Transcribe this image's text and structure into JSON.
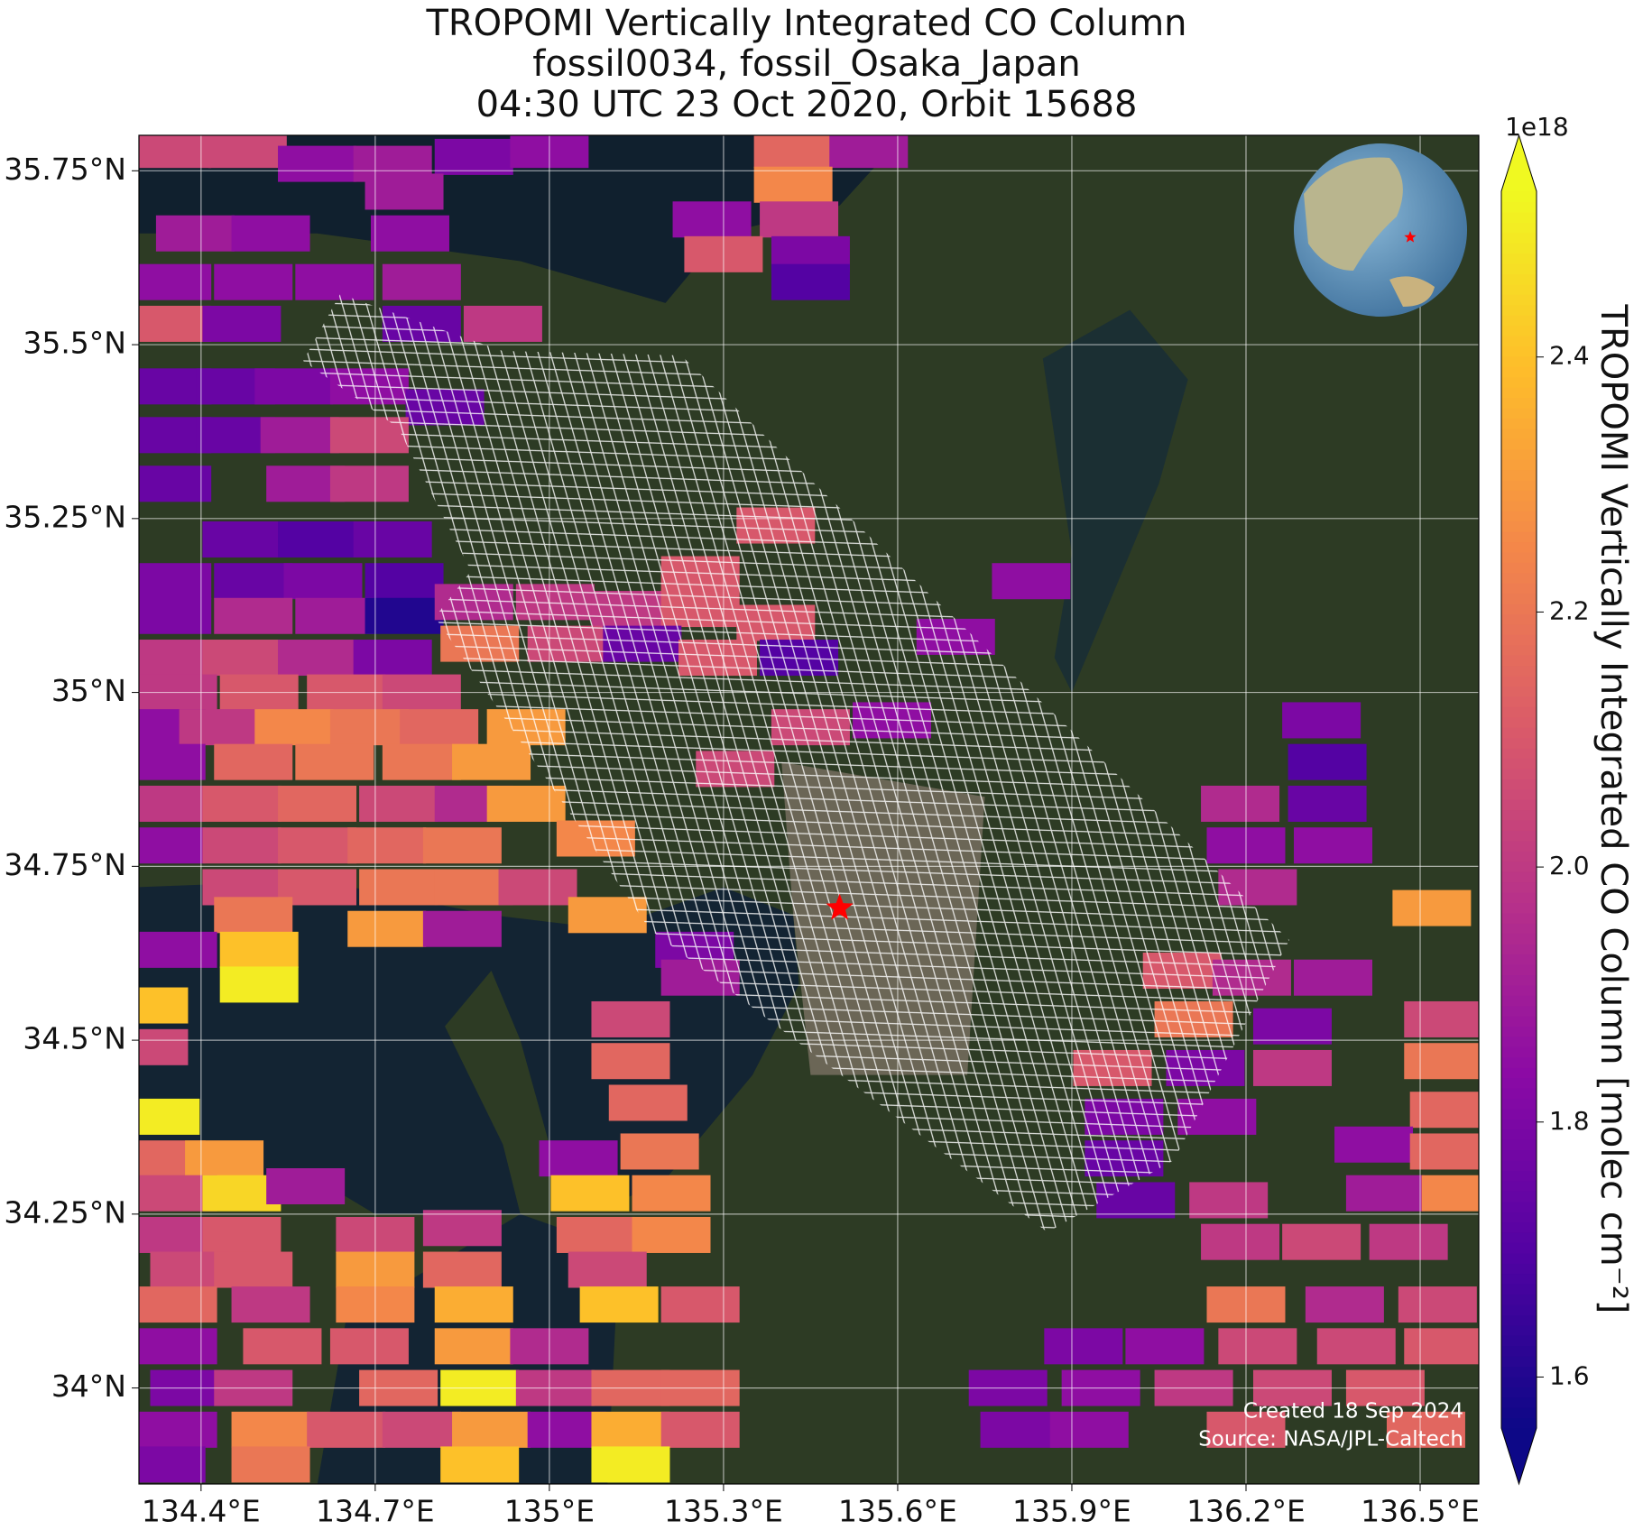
{
  "chart_data": {
    "type": "map",
    "title": [
      "TROPOMI Vertically Integrated CO Column",
      "fossil0034, fossil_Osaka_Japan",
      "04:30 UTC 23 Oct 2020, Orbit 15688"
    ],
    "xlim": [
      134.293,
      136.601
    ],
    "ylim": [
      33.862,
      35.801
    ],
    "xticks": [
      {
        "value": 134.4,
        "label": "134.4°E"
      },
      {
        "value": 134.7,
        "label": "134.7°E"
      },
      {
        "value": 135,
        "label": "135°E"
      },
      {
        "value": 135.3,
        "label": "135.3°E"
      },
      {
        "value": 135.6,
        "label": "135.6°E"
      },
      {
        "value": 135.9,
        "label": "135.9°E"
      },
      {
        "value": 136.2,
        "label": "136.2°E"
      },
      {
        "value": 136.5,
        "label": "136.5°E"
      }
    ],
    "yticks": [
      {
        "value": 34,
        "label": "34°N"
      },
      {
        "value": 34.25,
        "label": "34.25°N"
      },
      {
        "value": 34.5,
        "label": "34.5°N"
      },
      {
        "value": 34.75,
        "label": "34.75°N"
      },
      {
        "value": 35,
        "label": "35°N"
      },
      {
        "value": 35.25,
        "label": "35.25°N"
      },
      {
        "value": 35.5,
        "label": "35.5°N"
      },
      {
        "value": 35.75,
        "label": "35.75°N"
      }
    ],
    "grid": true,
    "colormap": "plasma",
    "colorbar": {
      "label": "TROPOMI Vertically Integrated CO Column [molec cm⁻²]",
      "offset_label": "1e18",
      "lim": [
        1.56,
        2.53
      ],
      "ticks": [
        1.6,
        1.8,
        {
          "value": 2,
          "label": "2.0"
        },
        2.2,
        2.4
      ]
    },
    "marker": {
      "lon": 135.5,
      "lat": 34.69,
      "color": "#ff0000"
    },
    "annotations": [
      "Created 18 Sep 2024",
      "Source: NASA/JPL-Caltech"
    ],
    "pixels": [
      [
        134.35,
        35.78,
        2.05
      ],
      [
        134.48,
        35.78,
        2.05
      ],
      [
        134.6,
        35.76,
        1.85
      ],
      [
        134.73,
        35.76,
        1.9
      ],
      [
        134.87,
        35.77,
        1.8
      ],
      [
        135.0,
        35.78,
        1.85
      ],
      [
        135.42,
        35.78,
        2.15
      ],
      [
        135.55,
        35.78,
        1.9
      ],
      [
        134.75,
        35.72,
        1.9
      ],
      [
        135.42,
        35.73,
        2.25
      ],
      [
        134.39,
        35.66,
        1.9
      ],
      [
        134.52,
        35.66,
        1.85
      ],
      [
        134.76,
        35.66,
        1.85
      ],
      [
        135.28,
        35.68,
        1.85
      ],
      [
        135.43,
        35.68,
        2.0
      ],
      [
        135.3,
        35.63,
        2.1
      ],
      [
        135.45,
        35.63,
        1.8
      ],
      [
        135.45,
        35.59,
        1.7
      ],
      [
        134.35,
        35.59,
        1.85
      ],
      [
        134.49,
        35.59,
        1.85
      ],
      [
        134.63,
        35.59,
        1.85
      ],
      [
        134.78,
        35.59,
        1.9
      ],
      [
        134.92,
        35.53,
        2.0
      ],
      [
        134.35,
        35.53,
        2.1
      ],
      [
        134.47,
        35.53,
        1.8
      ],
      [
        134.78,
        35.53,
        1.75
      ],
      [
        134.35,
        35.44,
        1.75
      ],
      [
        134.46,
        35.44,
        1.75
      ],
      [
        134.56,
        35.44,
        1.8
      ],
      [
        134.69,
        35.44,
        1.85
      ],
      [
        134.82,
        35.41,
        1.75
      ],
      [
        134.35,
        35.37,
        1.75
      ],
      [
        134.46,
        35.37,
        1.75
      ],
      [
        134.57,
        35.37,
        1.9
      ],
      [
        134.69,
        35.37,
        2.05
      ],
      [
        134.35,
        35.3,
        1.75
      ],
      [
        134.58,
        35.3,
        1.9
      ],
      [
        134.69,
        35.3,
        2.0
      ],
      [
        134.47,
        35.22,
        1.75
      ],
      [
        134.6,
        35.22,
        1.7
      ],
      [
        134.73,
        35.22,
        1.75
      ],
      [
        135.39,
        35.24,
        2.1
      ],
      [
        134.35,
        35.16,
        1.8
      ],
      [
        134.49,
        35.16,
        1.75
      ],
      [
        134.61,
        35.16,
        1.8
      ],
      [
        134.75,
        35.16,
        1.7
      ],
      [
        135.83,
        35.16,
        1.85
      ],
      [
        134.35,
        35.11,
        1.8
      ],
      [
        134.49,
        35.11,
        1.95
      ],
      [
        134.63,
        35.11,
        1.9
      ],
      [
        134.75,
        35.11,
        1.6
      ],
      [
        134.87,
        35.13,
        1.95
      ],
      [
        135.01,
        35.13,
        2.0
      ],
      [
        135.14,
        35.12,
        2.0
      ],
      [
        135.26,
        35.17,
        2.1
      ],
      [
        135.26,
        35.12,
        2.1
      ],
      [
        135.39,
        35.1,
        2.1
      ],
      [
        134.34,
        35.05,
        2.0
      ],
      [
        134.47,
        35.05,
        2.05
      ],
      [
        134.6,
        35.05,
        1.95
      ],
      [
        134.73,
        35.05,
        1.8
      ],
      [
        134.88,
        35.07,
        2.2
      ],
      [
        135.03,
        35.07,
        2.05
      ],
      [
        135.16,
        35.07,
        1.75
      ],
      [
        135.29,
        35.05,
        2.1
      ],
      [
        135.43,
        35.05,
        1.7
      ],
      [
        135.7,
        35.08,
        1.85
      ],
      [
        134.36,
        35.0,
        2.0
      ],
      [
        134.5,
        35.0,
        2.1
      ],
      [
        134.65,
        35.0,
        2.1
      ],
      [
        134.78,
        35.0,
        2.05
      ],
      [
        134.34,
        34.95,
        1.85
      ],
      [
        134.43,
        34.95,
        2.0
      ],
      [
        134.56,
        34.95,
        2.25
      ],
      [
        134.69,
        34.95,
        2.2
      ],
      [
        134.81,
        34.95,
        2.15
      ],
      [
        134.96,
        34.95,
        2.3
      ],
      [
        135.45,
        34.95,
        2.05
      ],
      [
        135.59,
        34.96,
        1.85
      ],
      [
        136.33,
        34.96,
        1.8
      ],
      [
        134.34,
        34.9,
        1.85
      ],
      [
        134.49,
        34.9,
        2.15
      ],
      [
        134.63,
        34.9,
        2.2
      ],
      [
        134.78,
        34.9,
        2.2
      ],
      [
        134.9,
        34.9,
        2.3
      ],
      [
        135.32,
        34.89,
        2.05
      ],
      [
        136.34,
        34.9,
        1.7
      ],
      [
        134.34,
        34.84,
        2.0
      ],
      [
        134.47,
        34.84,
        2.1
      ],
      [
        134.6,
        34.84,
        2.15
      ],
      [
        134.74,
        34.84,
        2.05
      ],
      [
        134.87,
        34.84,
        1.95
      ],
      [
        134.96,
        34.84,
        2.3
      ],
      [
        136.19,
        34.84,
        1.95
      ],
      [
        136.34,
        34.84,
        1.75
      ],
      [
        134.34,
        34.78,
        1.85
      ],
      [
        134.47,
        34.78,
        2.05
      ],
      [
        134.6,
        34.78,
        2.1
      ],
      [
        134.72,
        34.78,
        2.15
      ],
      [
        134.85,
        34.78,
        2.2
      ],
      [
        135.08,
        34.79,
        2.25
      ],
      [
        136.2,
        34.78,
        1.85
      ],
      [
        136.35,
        34.78,
        1.85
      ],
      [
        134.47,
        34.72,
        2.05
      ],
      [
        134.6,
        34.72,
        2.1
      ],
      [
        134.74,
        34.72,
        2.2
      ],
      [
        134.87,
        34.72,
        2.2
      ],
      [
        134.98,
        34.72,
        2.05
      ],
      [
        136.22,
        34.72,
        1.95
      ],
      [
        134.49,
        34.68,
        2.2
      ],
      [
        134.72,
        34.66,
        2.3
      ],
      [
        134.85,
        34.66,
        1.9
      ],
      [
        135.1,
        34.68,
        2.3
      ],
      [
        136.52,
        34.69,
        2.3
      ],
      [
        134.36,
        34.63,
        1.85
      ],
      [
        134.5,
        34.63,
        2.4
      ],
      [
        135.25,
        34.63,
        1.8
      ],
      [
        134.5,
        34.58,
        2.5
      ],
      [
        135.26,
        34.59,
        1.9
      ],
      [
        136.09,
        34.6,
        2.1
      ],
      [
        136.21,
        34.59,
        1.95
      ],
      [
        136.35,
        34.59,
        1.9
      ],
      [
        135.14,
        34.53,
        2.05
      ],
      [
        136.11,
        34.53,
        2.2
      ],
      [
        136.28,
        34.52,
        1.8
      ],
      [
        136.54,
        34.53,
        2.05
      ],
      [
        134.31,
        34.55,
        2.4
      ],
      [
        135.14,
        34.47,
        2.15
      ],
      [
        135.97,
        34.46,
        2.1
      ],
      [
        136.13,
        34.46,
        1.8
      ],
      [
        136.28,
        34.46,
        2.0
      ],
      [
        136.54,
        34.47,
        2.2
      ],
      [
        134.31,
        34.49,
        2.05
      ],
      [
        134.33,
        34.39,
        2.5
      ],
      [
        135.17,
        34.41,
        2.15
      ],
      [
        135.99,
        34.39,
        1.8
      ],
      [
        136.15,
        34.39,
        1.85
      ],
      [
        136.55,
        34.4,
        2.15
      ],
      [
        134.34,
        34.33,
        2.15
      ],
      [
        134.44,
        34.33,
        2.3
      ],
      [
        135.05,
        34.33,
        1.85
      ],
      [
        135.19,
        34.34,
        2.2
      ],
      [
        135.99,
        34.33,
        1.75
      ],
      [
        136.42,
        34.35,
        1.85
      ],
      [
        136.55,
        34.34,
        2.15
      ],
      [
        134.36,
        34.28,
        2.05
      ],
      [
        134.47,
        34.28,
        2.45
      ],
      [
        134.58,
        34.29,
        1.9
      ],
      [
        135.07,
        34.28,
        2.4
      ],
      [
        135.21,
        34.28,
        2.25
      ],
      [
        136.01,
        34.27,
        1.75
      ],
      [
        136.17,
        34.27,
        2.0
      ],
      [
        136.44,
        34.28,
        1.9
      ],
      [
        136.57,
        34.28,
        2.25
      ],
      [
        134.36,
        34.22,
        2.0
      ],
      [
        134.47,
        34.22,
        2.1
      ],
      [
        134.7,
        34.22,
        2.05
      ],
      [
        134.85,
        34.23,
        2.0
      ],
      [
        135.08,
        34.22,
        2.15
      ],
      [
        135.21,
        34.22,
        2.25
      ],
      [
        136.19,
        34.21,
        2.0
      ],
      [
        136.33,
        34.21,
        2.05
      ],
      [
        136.48,
        34.21,
        2.0
      ],
      [
        134.38,
        34.17,
        2.05
      ],
      [
        134.49,
        34.17,
        2.1
      ],
      [
        134.7,
        34.17,
        2.3
      ],
      [
        134.85,
        34.17,
        2.15
      ],
      [
        135.1,
        34.17,
        2.05
      ],
      [
        134.36,
        34.12,
        2.15
      ],
      [
        134.52,
        34.12,
        2.0
      ],
      [
        134.7,
        34.12,
        2.25
      ],
      [
        134.87,
        34.12,
        2.35
      ],
      [
        135.12,
        34.12,
        2.4
      ],
      [
        135.26,
        34.12,
        2.1
      ],
      [
        136.2,
        34.12,
        2.2
      ],
      [
        136.37,
        34.12,
        1.95
      ],
      [
        136.53,
        34.12,
        2.05
      ],
      [
        134.36,
        34.06,
        1.85
      ],
      [
        134.54,
        34.06,
        2.1
      ],
      [
        134.69,
        34.06,
        2.1
      ],
      [
        134.87,
        34.06,
        2.3
      ],
      [
        135.0,
        34.06,
        1.95
      ],
      [
        135.92,
        34.06,
        1.8
      ],
      [
        136.06,
        34.06,
        1.85
      ],
      [
        136.22,
        34.06,
        2.05
      ],
      [
        136.39,
        34.06,
        2.05
      ],
      [
        136.54,
        34.06,
        2.1
      ],
      [
        134.38,
        34.0,
        1.8
      ],
      [
        134.49,
        34.0,
        2.0
      ],
      [
        134.74,
        34.0,
        2.15
      ],
      [
        134.88,
        34.0,
        2.5
      ],
      [
        135.01,
        34.0,
        2.0
      ],
      [
        135.14,
        34.0,
        2.15
      ],
      [
        135.26,
        34.0,
        2.15
      ],
      [
        135.79,
        34.0,
        1.8
      ],
      [
        135.95,
        34.0,
        1.85
      ],
      [
        136.11,
        34.0,
        2.0
      ],
      [
        136.28,
        34.0,
        2.05
      ],
      [
        136.44,
        34.0,
        2.1
      ],
      [
        134.36,
        33.94,
        1.85
      ],
      [
        134.52,
        33.94,
        2.25
      ],
      [
        134.65,
        33.94,
        2.1
      ],
      [
        134.78,
        33.94,
        2.05
      ],
      [
        134.9,
        33.94,
        2.3
      ],
      [
        135.03,
        33.94,
        1.85
      ],
      [
        135.14,
        33.94,
        2.35
      ],
      [
        135.26,
        33.94,
        2.1
      ],
      [
        135.81,
        33.94,
        1.8
      ],
      [
        135.93,
        33.94,
        1.85
      ],
      [
        136.2,
        33.94,
        2.1
      ],
      [
        136.51,
        33.94,
        2.15
      ],
      [
        134.34,
        33.89,
        1.8
      ],
      [
        134.52,
        33.89,
        2.2
      ],
      [
        134.88,
        33.89,
        2.4
      ],
      [
        135.14,
        33.89,
        2.5
      ]
    ]
  }
}
